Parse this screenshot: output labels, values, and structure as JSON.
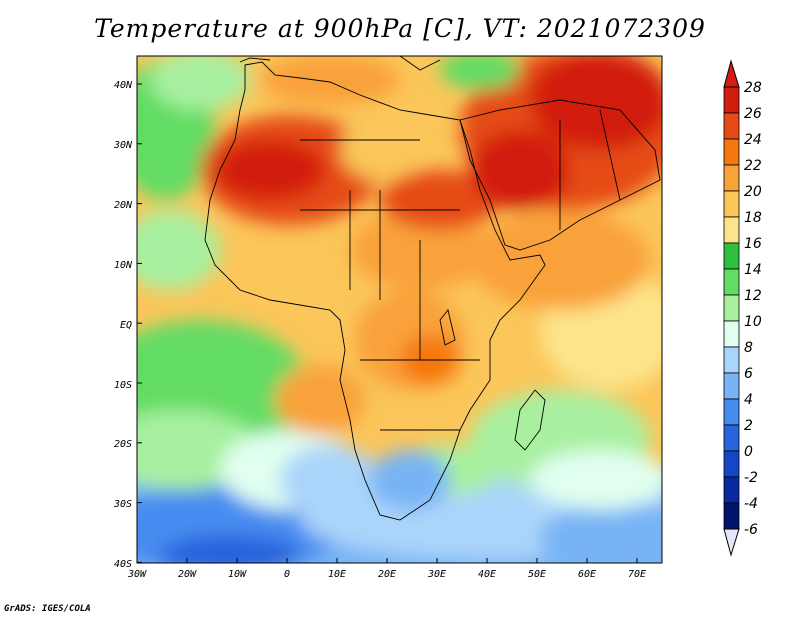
{
  "title": "Temperature at 900hPa [C], VT: 2021072309",
  "credit": "GrADS: IGES/COLA",
  "lat_labels": [
    "40N",
    "30N",
    "20N",
    "10N",
    "EQ",
    "10S",
    "20S",
    "30S",
    "40S"
  ],
  "lon_labels": [
    "30W",
    "20W",
    "10W",
    "0",
    "10E",
    "20E",
    "30E",
    "40E",
    "50E",
    "60E",
    "70E"
  ],
  "colorbar": {
    "labels": [
      "28",
      "26",
      "24",
      "22",
      "20",
      "18",
      "16",
      "14",
      "12",
      "10",
      "8",
      "6",
      "4",
      "2",
      "0",
      "-2",
      "-4",
      "-6"
    ],
    "colors": [
      "#d21e10",
      "#e64b16",
      "#f5780f",
      "#f9a23a",
      "#fbc65a",
      "#fde48a",
      "#30c040",
      "#64dc64",
      "#a8f0a0",
      "#e0fff0",
      "#aad4fa",
      "#78b4f5",
      "#468cf0",
      "#2864dc",
      "#1446c8",
      "#0a28a0",
      "#00146e"
    ]
  },
  "map": {
    "region": "Africa and Arabian Peninsula",
    "field": "900hPa temperature",
    "lat_range": [
      -40,
      45
    ],
    "lon_range": [
      -30,
      75
    ]
  }
}
